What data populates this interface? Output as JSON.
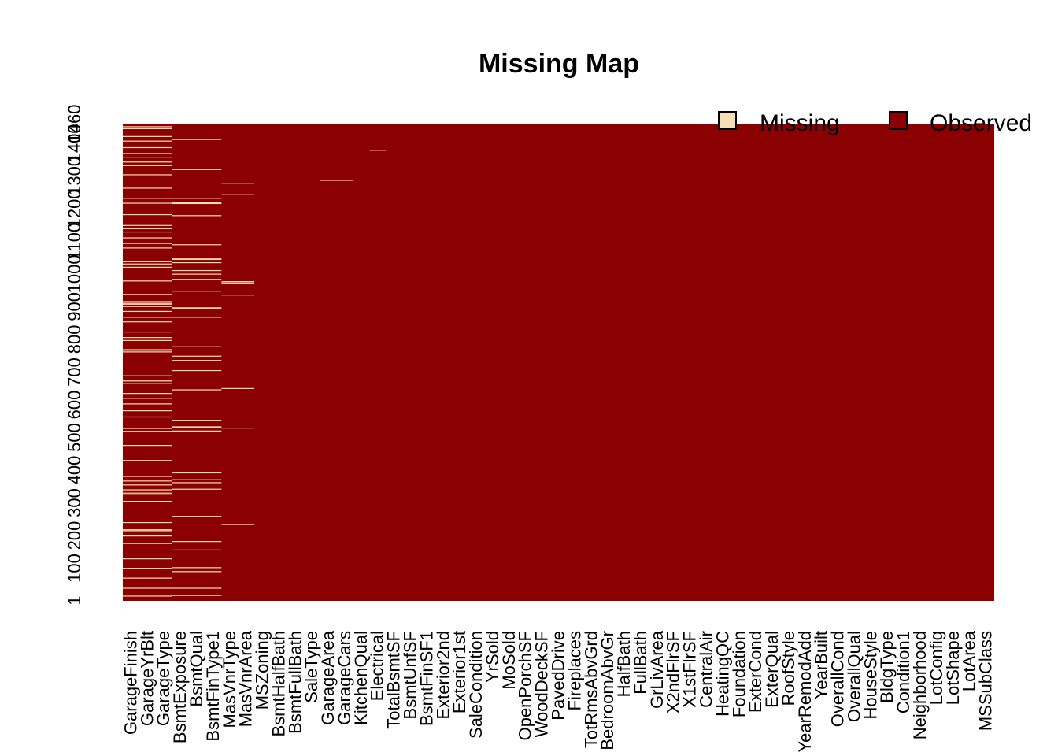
{
  "chart_data": {
    "type": "heatmap",
    "title": "Missing Map",
    "legend": {
      "placement": "top-right",
      "items": [
        {
          "label": "Missing",
          "color": "#F5DEB3"
        },
        {
          "label": "Observed",
          "color": "#8B0000"
        }
      ]
    },
    "colors": {
      "missing": "#F5DEB3",
      "observed": "#8B0000"
    },
    "row_count": 1460,
    "y_tick_labels": [
      "1460",
      "1400",
      "1300",
      "1200",
      "1100",
      "1000",
      "900",
      "800",
      "700",
      "600",
      "500",
      "400",
      "300",
      "200",
      "100",
      "1"
    ],
    "columns": [
      "GarageFinish",
      "GarageYrBlt",
      "GarageType",
      "BsmtExposure",
      "BsmtQual",
      "BsmtFinType1",
      "MasVnrType",
      "MasVnrArea",
      "MSZoning",
      "BsmtHalfBath",
      "BsmtFullBath",
      "SaleType",
      "GarageArea",
      "GarageCars",
      "KitchenQual",
      "Electrical",
      "TotalBsmtSF",
      "BsmtUnfSF",
      "BsmtFinSF1",
      "Exterior2nd",
      "Exterior1st",
      "SaleCondition",
      "YrSold",
      "MoSold",
      "OpenPorchSF",
      "WoodDeckSF",
      "PavedDrive",
      "Fireplaces",
      "TotRmsAbvGrd",
      "BedroomAbvGr",
      "HalfBath",
      "FullBath",
      "GrLivArea",
      "X2ndFlrSF",
      "X1stFlrSF",
      "CentralAir",
      "HeatingQC",
      "Foundation",
      "ExterCond",
      "ExterQual",
      "RoofStyle",
      "YearRemodAdd",
      "YearBuilt",
      "OverallCond",
      "OverallQual",
      "HouseStyle",
      "BldgType",
      "Condition1",
      "Neighborhood",
      "LotConfig",
      "LotShape",
      "LotArea",
      "MSSubClass"
    ],
    "missing_rows": {
      "garage": [
        16,
        40,
        71,
        101,
        130,
        177,
        200,
        216,
        219,
        241,
        306,
        326,
        331,
        341,
        356,
        368,
        382,
        431,
        477,
        520,
        529,
        564,
        583,
        604,
        621,
        636,
        666,
        674,
        677,
        690,
        763,
        768,
        770,
        798,
        807,
        824,
        855,
        869,
        887,
        902,
        909,
        912,
        917,
        939,
        980,
        1022,
        1032,
        1039,
        1081,
        1095,
        1112,
        1130,
        1140,
        1150,
        1183,
        1218,
        1233,
        1264,
        1305,
        1333,
        1344,
        1357,
        1370,
        1388,
        1408,
        1422,
        1446,
        1452
      ],
      "bsmt": [
        18,
        40,
        91,
        103,
        157,
        183,
        260,
        343,
        363,
        372,
        393,
        521,
        533,
        534,
        554,
        647,
        706,
        737,
        750,
        779,
        869,
        895,
        898,
        949,
        985,
        1001,
        1012,
        1036,
        1046,
        1049,
        1091,
        1180,
        1217,
        1219,
        1233,
        1321,
        1413
      ],
      "masvnr": [
        235,
        530,
        651,
        937,
        974,
        978,
        1244,
        1279
      ],
      "garage_cars": [
        1288
      ],
      "electrical": [
        1380
      ]
    }
  }
}
